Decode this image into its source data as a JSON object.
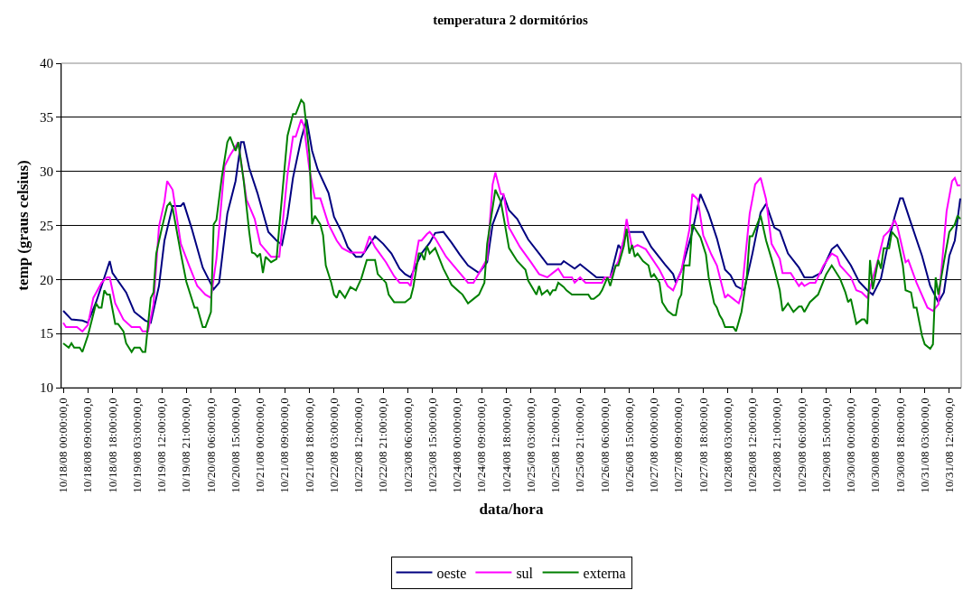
{
  "chart_data": {
    "type": "line",
    "title": "temperatura 2 dormitórios",
    "xlabel": "data/hora",
    "ylabel": "temp (graus celsius)",
    "xlim": [
      "--10-17T23:20",
      "--10-31T16:20"
    ],
    "xticks": [
      {
        "value": "--10-18T00:00",
        "label": "10/18/08 00:00:00,0"
      },
      {
        "value": "--10-18T09:00",
        "label": "10/18/08 09:00:00,0"
      },
      {
        "value": "--10-18T18:00",
        "label": "10/18/08 18:00:00,0"
      },
      {
        "value": "--10-19T03:00",
        "label": "10/19/08 03:00:00,0"
      },
      {
        "value": "--10-19T12:00",
        "label": "10/19/08 12:00:00,0"
      },
      {
        "value": "--10-19T21:00",
        "label": "10/19/08 21:00:00,0"
      },
      {
        "value": "--10-20T06:00",
        "label": "10/20/08 06:00:00,0"
      },
      {
        "value": "--10-20T15:00",
        "label": "10/20/08 15:00:00,0"
      },
      {
        "value": "--10-21T00:00",
        "label": "10/21/08 00:00:00,0"
      },
      {
        "value": "--10-21T09:00",
        "label": "10/21/08 09:00:00,0"
      },
      {
        "value": "--10-21T18:00",
        "label": "10/21/08 18:00:00,0"
      },
      {
        "value": "--10-22T03:00",
        "label": "10/22/08 03:00:00,0"
      },
      {
        "value": "--10-22T12:00",
        "label": "10/22/08 12:00:00,0"
      },
      {
        "value": "--10-22T21:00",
        "label": "10/22/08 21:00:00,0"
      },
      {
        "value": "--10-23T06:00",
        "label": "10/23/08 06:00:00,0"
      },
      {
        "value": "--10-23T15:00",
        "label": "10/23/08 15:00:00,0"
      },
      {
        "value": "--10-24T00:00",
        "label": "10/24/08 00:00:00,0"
      },
      {
        "value": "--10-24T09:00",
        "label": "10/24/08 09:00:00,0"
      },
      {
        "value": "--10-24T18:00",
        "label": "10/24/08 18:00:00,0"
      },
      {
        "value": "--10-25T03:00",
        "label": "10/25/08 03:00:00,0"
      },
      {
        "value": "--10-25T12:00",
        "label": "10/25/08 12:00:00,0"
      },
      {
        "value": "--10-25T21:00",
        "label": "10/25/08 21:00:00,0"
      },
      {
        "value": "--10-26T06:00",
        "label": "10/26/08 06:00:00,0"
      },
      {
        "value": "--10-26T15:00",
        "label": "10/26/08 15:00:00,0"
      },
      {
        "value": "--10-27T00:00",
        "label": "10/27/08 00:00:00,0"
      },
      {
        "value": "--10-27T09:00",
        "label": "10/27/08 09:00:00,0"
      },
      {
        "value": "--10-27T18:00",
        "label": "10/27/08 18:00:00,0"
      },
      {
        "value": "--10-28T03:00",
        "label": "10/28/08 03:00:00,0"
      },
      {
        "value": "--10-28T12:00",
        "label": "10/28/08 12:00:00,0"
      },
      {
        "value": "--10-28T21:00",
        "label": "10/28/08 21:00:00,0"
      },
      {
        "value": "--10-29T06:00",
        "label": "10/29/08 06:00:00,0"
      },
      {
        "value": "--10-29T15:00",
        "label": "10/29/08 15:00:00,0"
      },
      {
        "value": "--10-30T00:00",
        "label": "10/30/08 00:00:00,0"
      },
      {
        "value": "--10-30T09:00",
        "label": "10/30/08 09:00:00,0"
      },
      {
        "value": "--10-30T18:00",
        "label": "10/30/08 18:00:00,0"
      },
      {
        "value": "--10-31T03:00",
        "label": "10/31/08 03:00:00,0"
      },
      {
        "value": "--10-31T12:00",
        "label": "10/31/08 12:00:00,0"
      }
    ],
    "ylim": [
      10,
      40
    ],
    "yticks": [
      10,
      15,
      20,
      25,
      30,
      35,
      40
    ],
    "grid": "y",
    "legend": "bottom",
    "marker": "none",
    "line_style": "solid",
    "series": [
      {
        "name": "oeste",
        "color": "#000080",
        "x": [
          "--10-18T00:00",
          "--10-18T03:00",
          "--10-18T07:00",
          "--10-18T09:00",
          "--10-18T12:00",
          "--10-18T14:00",
          "--10-18T17:00",
          "--10-18T18:00",
          "--10-18T23:00",
          "--10-19T02:00",
          "--10-19T06:00",
          "--10-19T08:00",
          "--10-19T11:00",
          "--10-19T13:00",
          "--10-19T16:00",
          "--10-19T19:00",
          "--10-19T20:00",
          "--10-19T23:00",
          "--10-20T03:00",
          "--10-20T07:00",
          "--10-20T09:00",
          "--10-20T12:00",
          "--10-20T15:00",
          "--10-20T17:00",
          "--10-20T18:00",
          "--10-20T20:00",
          "--10-20T23:00",
          "--10-21T03:00",
          "--10-21T06:00",
          "--10-21T08:00",
          "--10-21T10:00",
          "--10-21T12:00",
          "--10-21T15:00",
          "--10-21T17:00",
          "--10-21T19:00",
          "--10-21T21:00",
          "--10-22T01:00",
          "--10-22T03:00",
          "--10-22T06:00",
          "--10-22T08:00",
          "--10-22T11:00",
          "--10-22T13:00",
          "--10-22T18:00",
          "--10-22T21:00",
          "--10-23T00:00",
          "--10-23T03:00",
          "--10-23T05:00",
          "--10-23T07:00",
          "--10-23T11:00",
          "--10-23T14:00",
          "--10-23T16:00",
          "--10-23T19:00",
          "--10-23T22:00",
          "--10-24T01:00",
          "--10-24T04:00",
          "--10-24T08:00",
          "--10-24T11:00",
          "--10-24T13:00",
          "--10-24T17:00",
          "--10-24T19:00",
          "--10-24T22:00",
          "--10-25T02:00",
          "--10-25T06:00",
          "--10-25T09:00",
          "--10-25T14:00",
          "--10-25T15:00",
          "--10-25T19:00",
          "--10-25T21:00",
          "--10-26T00:00",
          "--10-26T03:00",
          "--10-26T08:00",
          "--10-26T11:00",
          "--10-26T12:00",
          "--10-26T14:00",
          "--10-26T20:00",
          "--10-26T23:00",
          "--10-27T04:00",
          "--10-27T07:00",
          "--10-27T08:00",
          "--10-27T10:00",
          "--10-27T14:00",
          "--10-27T17:00",
          "--10-27T20:00",
          "--10-27T23:00",
          "--10-28T02:00",
          "--10-28T04:00",
          "--10-28T06:00",
          "--10-28T09:00",
          "--10-28T12:00",
          "--10-28T15:00",
          "--10-28T17:00",
          "--10-28T20:00",
          "--10-28T22:00",
          "--10-29T01:00",
          "--10-29T05:00",
          "--10-29T07:00",
          "--10-29T10:00",
          "--10-29T13:00",
          "--10-29T17:00",
          "--10-29T19:00",
          "--10-30T00:00",
          "--10-30T03:00",
          "--10-30T06:00",
          "--10-30T08:00",
          "--10-30T11:00",
          "--10-30T14:00",
          "--10-30T16:00",
          "--10-30T18:00",
          "--10-30T19:00",
          "--10-30T22:00",
          "--10-31T02:00",
          "--10-31T05:00",
          "--10-31T08:00",
          "--10-31T10:00",
          "--10-31T12:00",
          "--10-31T14:00",
          "--10-31T16:00"
        ],
        "values": [
          17.1,
          16.3,
          16.2,
          16.0,
          17.9,
          19.4,
          21.7,
          20.6,
          18.8,
          17.0,
          16.2,
          16.0,
          19.4,
          23.6,
          26.8,
          26.8,
          27.1,
          24.7,
          21.1,
          19.1,
          19.7,
          26.1,
          29.1,
          32.7,
          32.7,
          30.3,
          28.0,
          24.4,
          23.6,
          23.2,
          25.8,
          29.4,
          33.0,
          34.8,
          31.9,
          30.2,
          28.0,
          25.8,
          24.3,
          23.0,
          22.1,
          22.1,
          24.0,
          23.3,
          22.4,
          21.0,
          20.5,
          20.2,
          22.4,
          23.4,
          24.3,
          24.4,
          23.4,
          22.3,
          21.3,
          20.6,
          21.6,
          25.1,
          27.8,
          26.4,
          25.6,
          23.7,
          22.4,
          21.4,
          21.4,
          21.7,
          21.0,
          21.4,
          20.8,
          20.2,
          20.2,
          23.2,
          22.8,
          24.4,
          24.4,
          23.0,
          21.4,
          20.5,
          19.7,
          20.8,
          24.4,
          27.9,
          26.1,
          23.8,
          20.9,
          20.4,
          19.4,
          19.0,
          22.4,
          26.2,
          27.0,
          24.8,
          24.5,
          22.4,
          21.1,
          20.2,
          20.2,
          20.6,
          22.8,
          23.2,
          21.3,
          19.8,
          19.0,
          18.6,
          20.1,
          23.8,
          25.8,
          27.5,
          27.5,
          25.2,
          22.2,
          19.4,
          17.9,
          18.8,
          22.2,
          23.6,
          27.5
        ]
      },
      {
        "name": "sul",
        "color": "#ff00ff",
        "x": [
          "--10-18T00:00",
          "--10-18T01:00",
          "--10-18T05:00",
          "--10-18T07:00",
          "--10-18T09:00",
          "--10-18T11:00",
          "--10-18T14:00",
          "--10-18T16:00",
          "--10-18T17:00",
          "--10-18T19:00",
          "--10-18T22:00",
          "--10-19T01:00",
          "--10-19T04:00",
          "--10-19T05:00",
          "--10-19T07:00",
          "--10-19T09:00",
          "--10-19T11:00",
          "--10-19T13:00",
          "--10-19T14:00",
          "--10-19T16:00",
          "--10-19T19:00",
          "--10-19T22:00",
          "--10-20T01:00",
          "--10-20T04:00",
          "--10-20T06:00",
          "--10-20T08:00",
          "--10-20T11:00",
          "--10-20T13:00",
          "--10-20T16:00",
          "--10-20T19:00",
          "--10-20T22:00",
          "--10-21T00:00",
          "--10-21T03:00",
          "--10-21T04:00",
          "--10-21T07:00",
          "--10-21T10:00",
          "--10-21T12:00",
          "--10-21T13:00",
          "--10-21T15:00",
          "--10-21T16:00",
          "--10-21T18:00",
          "--10-21T20:00",
          "--10-21T22:00",
          "--10-22T01:00",
          "--10-22T04:00",
          "--10-22T06:00",
          "--10-22T09:00",
          "--10-22T14:00",
          "--10-22T16:00",
          "--10-22T18:00",
          "--10-22T22:00",
          "--10-23T01:00",
          "--10-23T03:00",
          "--10-23T06:00",
          "--10-23T07:00",
          "--10-23T10:00",
          "--10-23T11:00",
          "--10-23T13:00",
          "--10-23T14:00",
          "--10-23T16:00",
          "--10-23T20:00",
          "--10-24T00:00",
          "--10-24T04:00",
          "--10-24T06:00",
          "--10-24T11:00",
          "--10-24T13:00",
          "--10-24T14:00",
          "--10-24T16:00",
          "--10-24T17:00",
          "--10-24T19:00",
          "--10-24T23:00",
          "--10-25T03:00",
          "--10-25T06:00",
          "--10-25T09:00",
          "--10-25T11:00",
          "--10-25T13:00",
          "--10-25T15:00",
          "--10-25T18:00",
          "--10-25T19:00",
          "--10-25T21:00",
          "--10-25T23:00",
          "--10-26T05:00",
          "--10-26T06:00",
          "--10-26T08:00",
          "--10-26T11:00",
          "--10-26T13:00",
          "--10-26T14:00",
          "--10-26T16:00",
          "--10-26T18:00",
          "--10-26T21:00",
          "--10-27T02:00",
          "--10-27T05:00",
          "--10-27T07:00",
          "--10-27T10:00",
          "--10-27T13:00",
          "--10-27T14:00",
          "--10-27T16:00",
          "--10-27T18:00",
          "--10-27T21:00",
          "--10-27T23:00",
          "--10-28T02:00",
          "--10-28T03:00",
          "--10-28T05:00",
          "--10-28T07:00",
          "--10-28T08:00",
          "--10-28T11:00",
          "--10-28T13:00",
          "--10-28T15:00",
          "--10-28T17:00",
          "--10-28T19:00",
          "--10-28T22:00",
          "--10-28T23:00",
          "--10-29T02:00",
          "--10-29T05:00",
          "--10-29T06:00",
          "--10-29T07:00",
          "--10-29T09:00",
          "--10-29T11:00",
          "--10-29T14:00",
          "--10-29T17:00",
          "--10-29T19:00",
          "--10-29T20:00",
          "--10-30T00:00",
          "--10-30T02:00",
          "--10-30T04:00",
          "--10-30T06:00",
          "--10-30T10:00",
          "--10-30T12:00",
          "--10-30T14:00",
          "--10-30T16:00",
          "--10-30T17:00",
          "--10-30T20:00",
          "--10-30T21:00",
          "--10-31T00:00",
          "--10-31T04:00",
          "--10-31T06:00",
          "--10-31T08:00",
          "--10-31T11:00",
          "--10-31T13:00",
          "--10-31T14:00",
          "--10-31T15:00",
          "--10-31T16:00"
        ],
        "values": [
          16.0,
          15.6,
          15.6,
          15.2,
          15.8,
          18.3,
          19.7,
          20.2,
          20.2,
          17.8,
          16.3,
          15.6,
          15.6,
          15.2,
          15.2,
          17.7,
          24.9,
          27.2,
          29.1,
          28.3,
          23.3,
          21.3,
          19.4,
          18.6,
          18.3,
          21.9,
          30.5,
          31.5,
          32.7,
          27.4,
          25.6,
          23.3,
          22.4,
          22.1,
          22.1,
          29.7,
          33.2,
          33.2,
          34.8,
          34.2,
          30.2,
          27.5,
          27.5,
          25.1,
          23.6,
          22.9,
          22.5,
          22.5,
          24.0,
          23.0,
          21.6,
          20.3,
          19.7,
          19.7,
          19.4,
          23.6,
          23.6,
          24.2,
          24.4,
          23.8,
          22.1,
          20.9,
          19.7,
          19.7,
          21.9,
          28.8,
          29.9,
          27.9,
          27.9,
          24.8,
          23.0,
          21.6,
          20.5,
          20.2,
          20.6,
          21.0,
          20.2,
          20.2,
          19.7,
          20.2,
          19.7,
          19.7,
          20.2,
          20.2,
          21.7,
          23.8,
          25.6,
          22.9,
          23.2,
          22.8,
          20.9,
          19.4,
          19.0,
          20.8,
          24.7,
          27.9,
          27.4,
          24.1,
          22.3,
          21.3,
          18.3,
          18.6,
          18.2,
          17.8,
          18.6,
          26.1,
          28.8,
          29.4,
          27.4,
          23.3,
          21.9,
          20.6,
          20.6,
          19.4,
          19.7,
          19.4,
          19.7,
          19.7,
          21.3,
          22.4,
          22.1,
          21.3,
          20.2,
          19.0,
          18.8,
          18.3,
          21.9,
          24.0,
          24.5,
          25.5,
          24.9,
          21.6,
          21.8,
          19.7,
          17.4,
          17.1,
          17.7,
          26.3,
          29.1,
          29.4,
          28.7,
          28.7
        ]
      },
      {
        "name": "externa",
        "color": "#008000",
        "x": [
          "--10-18T00:00",
          "--10-18T02:00",
          "--10-18T03:00",
          "--10-18T04:00",
          "--10-18T06:00",
          "--10-18T07:00",
          "--10-18T09:00",
          "--10-18T11:00",
          "--10-18T12:00",
          "--10-18T13:00",
          "--10-18T14:00",
          "--10-18T15:00",
          "--10-18T16:00",
          "--10-18T17:00",
          "--10-18T19:00",
          "--10-18T20:00",
          "--10-18T22:00",
          "--10-18T23:00",
          "--10-19T01:00",
          "--10-19T02:00",
          "--10-19T04:00",
          "--10-19T05:00",
          "--10-19T06:00",
          "--10-19T08:00",
          "--10-19T09:00",
          "--10-19T10:00",
          "--10-19T12:00",
          "--10-19T14:00",
          "--10-19T15:00",
          "--10-19T16:00",
          "--10-19T19:00",
          "--10-19T21:00",
          "--10-20T00:00",
          "--10-20T01:00",
          "--10-20T03:00",
          "--10-20T04:00",
          "--10-20T06:00",
          "--10-20T07:00",
          "--10-20T08:00",
          "--10-20T10:00",
          "--10-20T12:00",
          "--10-20T13:00",
          "--10-20T15:00",
          "--10-20T16:00",
          "--10-20T18:00",
          "--10-20T20:00",
          "--10-20T21:00",
          "--10-20T22:00",
          "--10-20T23:00",
          "--10-21T00:00",
          "--10-21T01:00",
          "--10-21T02:00",
          "--10-21T04:00",
          "--10-21T06:00",
          "--10-21T07:00",
          "--10-21T10:00",
          "--10-21T12:00",
          "--10-21T13:00",
          "--10-21T15:00",
          "--10-21T16:00",
          "--10-21T18:00",
          "--10-21T19:00",
          "--10-21T20:00",
          "--10-21T22:00",
          "--10-21T23:00",
          "--10-22T00:00",
          "--10-22T02:00",
          "--10-22T03:00",
          "--10-22T04:00",
          "--10-22T05:00",
          "--10-22T07:00",
          "--10-22T09:00",
          "--10-22T11:00",
          "--10-22T13:00",
          "--10-22T15:00",
          "--10-22T18:00",
          "--10-22T19:00",
          "--10-22T22:00",
          "--10-22T23:00",
          "--10-23T01:00",
          "--10-23T05:00",
          "--10-23T07:00",
          "--10-23T08:00",
          "--10-23T10:00",
          "--10-23T11:00",
          "--10-23T12:00",
          "--10-23T13:00",
          "--10-23T14:00",
          "--10-23T16:00",
          "--10-23T19:00",
          "--10-23T22:00",
          "--10-24T02:00",
          "--10-24T04:00",
          "--10-24T06:00",
          "--10-24T08:00",
          "--10-24T10:00",
          "--10-24T11:00",
          "--10-24T14:00",
          "--10-24T16:00",
          "--10-24T17:00",
          "--10-24T19:00",
          "--10-24T22:00",
          "--10-25T01:00",
          "--10-25T02:00",
          "--10-25T05:00",
          "--10-25T06:00",
          "--10-25T07:00",
          "--10-25T09:00",
          "--10-25T10:00",
          "--10-25T11:00",
          "--10-25T12:00",
          "--10-25T13:00",
          "--10-25T15:00",
          "--10-25T16:00",
          "--10-25T18:00",
          "--10-26T00:00",
          "--10-26T01:00",
          "--10-26T02:00",
          "--10-26T04:00",
          "--10-26T05:00",
          "--10-26T07:00",
          "--10-26T08:00",
          "--10-26T10:00",
          "--10-26T11:00",
          "--10-26T13:00",
          "--10-26T14:00",
          "--10-26T15:00",
          "--10-26T16:00",
          "--10-26T17:00",
          "--10-26T18:00",
          "--10-26T20:00",
          "--10-26T22:00",
          "--10-26T23:00",
          "--10-27T00:00",
          "--10-27T02:00",
          "--10-27T03:00",
          "--10-27T05:00",
          "--10-27T07:00",
          "--10-27T08:00",
          "--10-27T09:00",
          "--10-27T10:00",
          "--10-27T11:00",
          "--10-27T13:00",
          "--10-27T14:00",
          "--10-27T15:00",
          "--10-27T17:00",
          "--10-27T19:00",
          "--10-27T20:00",
          "--10-27T22:00",
          "--10-27T23:00",
          "--10-28T00:00",
          "--10-28T01:00",
          "--10-28T02:00",
          "--10-28T05:00",
          "--10-28T06:00",
          "--10-28T08:00",
          "--10-28T10:00",
          "--10-28T11:00",
          "--10-28T12:00",
          "--10-28T15:00",
          "--10-28T17:00",
          "--10-28T19:00",
          "--10-28T20:00",
          "--10-28T22:00",
          "--10-28T23:00",
          "--10-29T01:00",
          "--10-29T03:00",
          "--10-29T05:00",
          "--10-29T06:00",
          "--10-29T07:00",
          "--10-29T09:00",
          "--10-29T12:00",
          "--10-29T15:00",
          "--10-29T17:00",
          "--10-29T20:00",
          "--10-29T22:00",
          "--10-29T23:00",
          "--10-30T00:00",
          "--10-30T02:00",
          "--10-30T04:00",
          "--10-30T05:00",
          "--10-30T06:00",
          "--10-30T07:00",
          "--10-30T08:00",
          "--10-30T10:00",
          "--10-30T11:00",
          "--10-30T12:00",
          "--10-30T14:00",
          "--10-30T15:00",
          "--10-30T17:00",
          "--10-30T19:00",
          "--10-30T20:00",
          "--10-30T22:00",
          "--10-30T23:00",
          "--10-31T00:00",
          "--10-31T02:00",
          "--10-31T03:00",
          "--10-31T05:00",
          "--10-31T06:00",
          "--10-31T07:00",
          "--10-31T08:00",
          "--10-31T10:00",
          "--10-31T12:00",
          "--10-31T14:00",
          "--10-31T15:00",
          "--10-31T16:00"
        ],
        "values": [
          14.1,
          13.7,
          14.1,
          13.7,
          13.7,
          13.3,
          14.8,
          16.8,
          17.8,
          17.4,
          17.4,
          19.0,
          18.6,
          18.6,
          15.9,
          15.9,
          15.2,
          14.1,
          13.3,
          13.7,
          13.7,
          13.3,
          13.3,
          18.3,
          18.8,
          22.4,
          24.7,
          26.8,
          27.1,
          26.6,
          22.4,
          19.8,
          17.4,
          17.4,
          15.6,
          15.6,
          17.0,
          25.1,
          25.5,
          29.5,
          32.7,
          33.2,
          31.9,
          32.7,
          29.1,
          24.4,
          22.5,
          22.4,
          22.1,
          22.4,
          20.6,
          22.1,
          21.6,
          21.9,
          24.9,
          33.3,
          35.3,
          35.3,
          36.6,
          36.3,
          31.6,
          25.1,
          25.9,
          25.1,
          24.1,
          21.3,
          19.7,
          18.6,
          18.3,
          19.0,
          18.3,
          19.3,
          19.0,
          20.1,
          21.8,
          21.8,
          20.5,
          19.7,
          18.6,
          17.9,
          17.9,
          18.3,
          19.3,
          22.4,
          22.4,
          21.8,
          23.1,
          22.4,
          22.9,
          21.0,
          19.5,
          18.6,
          17.8,
          18.2,
          18.6,
          19.7,
          23.3,
          28.3,
          27.2,
          25.8,
          22.9,
          21.7,
          20.9,
          19.9,
          18.6,
          19.4,
          18.6,
          19.0,
          18.6,
          19.0,
          19.0,
          19.7,
          19.3,
          19.0,
          18.6,
          18.6,
          18.2,
          18.2,
          18.6,
          19.0,
          20.2,
          19.4,
          21.3,
          21.3,
          23.1,
          24.7,
          22.4,
          23.2,
          22.1,
          22.4,
          21.7,
          21.3,
          20.2,
          20.5,
          19.7,
          17.9,
          17.1,
          16.7,
          16.7,
          18.1,
          18.6,
          21.3,
          21.3,
          25.1,
          24.7,
          23.9,
          22.3,
          20.2,
          17.8,
          17.4,
          16.7,
          16.3,
          15.6,
          15.6,
          15.2,
          17.0,
          20.4,
          24.0,
          24.0,
          25.9,
          23.6,
          21.9,
          21.0,
          19.0,
          17.1,
          17.8,
          17.0,
          17.5,
          17.5,
          17.0,
          17.9,
          18.6,
          20.5,
          21.3,
          20.1,
          18.8,
          17.9,
          18.2,
          15.9,
          16.3,
          16.3,
          15.9,
          21.8,
          19.1,
          21.8,
          21.0,
          22.9,
          22.9,
          24.4,
          23.8,
          21.3,
          19.0,
          18.8,
          17.4,
          17.4,
          14.8,
          14.0,
          13.6,
          14.0,
          20.2,
          18.6,
          21.6,
          24.4,
          25.1,
          25.9,
          25.6
        ]
      }
    ]
  }
}
